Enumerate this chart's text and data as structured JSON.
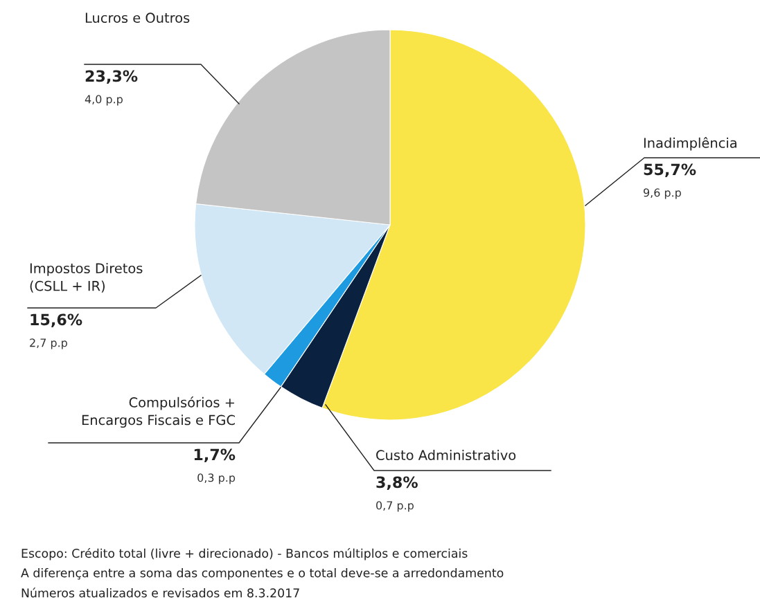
{
  "chart_data": {
    "type": "pie",
    "categories": [
      "Inadimplência",
      "Custo Administrativo",
      "Compulsórios +\nEncargos Fiscais e FGC",
      "Impostos Diretos\n(CSLL + IR)",
      "Lucros e Outros"
    ],
    "values": [
      55.7,
      3.8,
      1.7,
      15.6,
      23.3
    ],
    "colors": [
      "#f9e547",
      "#0a2240",
      "#1e9be0",
      "#d1e7f5",
      "#c4c4c4"
    ],
    "value_labels": [
      "55,7%",
      "3,8%",
      "1,7%",
      "15,6%",
      "23,3%"
    ],
    "annotations": [
      "9,6 p.p",
      "0,7 p.p",
      "0,3 p.p",
      "2,7 p.p",
      "4,0 p.p",
      "Escopo: Crédito total (livre + direcionado) - Bancos múltiplos e comerciais",
      "A diferença entre a soma das componentes e o total deve-se a arredondamento",
      "Números atualizados e revisados em 8.3.2017"
    ]
  }
}
